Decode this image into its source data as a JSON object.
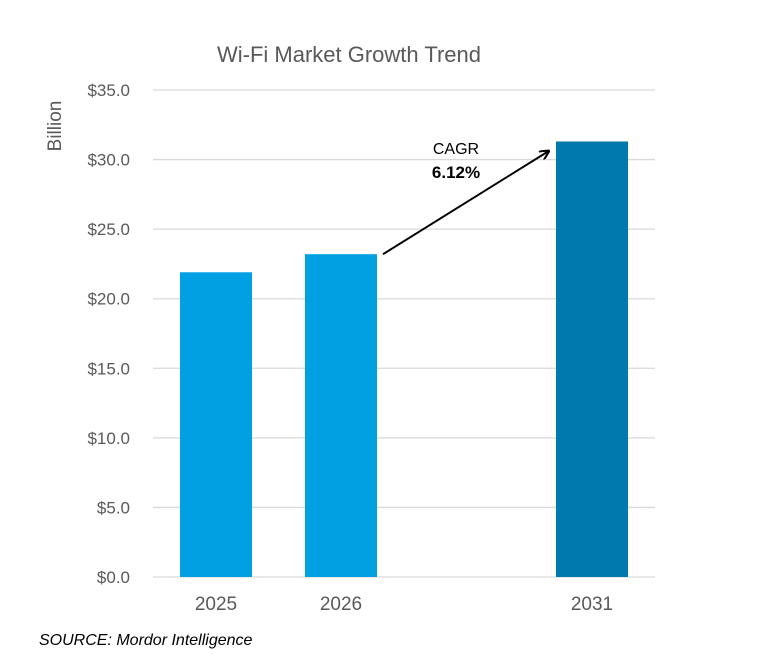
{
  "chart_data": {
    "type": "bar",
    "title": "Wi-Fi Market Growth Trend",
    "xlabel": "",
    "ylabel": "Billion",
    "categories": [
      "2025",
      "2026",
      "2031"
    ],
    "values": [
      21.9,
      23.2,
      31.3
    ],
    "colors": [
      "#00A0E3",
      "#00A0E3",
      "#0079AE"
    ],
    "ylim": [
      0,
      35
    ],
    "yticks": [
      0,
      5,
      10,
      15,
      20,
      25,
      30,
      35
    ],
    "ytick_labels": [
      "$0.0",
      "$5.0",
      "$10.0",
      "$15.0",
      "$20.0",
      "$25.0",
      "$30.0",
      "$35.0"
    ],
    "grid": true,
    "legend": "none",
    "annotation": {
      "label": "CAGR",
      "value": "6.12%",
      "arrow_from": "2026",
      "arrow_to": "2031"
    }
  },
  "source": "SOURCE: Mordor Intelligence"
}
